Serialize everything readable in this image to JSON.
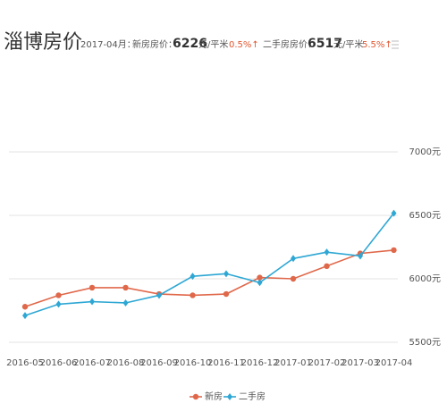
{
  "header": {
    "title": "淄博房价",
    "month": "2017-04月：",
    "new_label": "新房房价：",
    "new_price": "6226",
    "new_unit": "元/平米",
    "new_change": "0.5%↑",
    "second_label": "二手房房价：",
    "second_price": "6517",
    "second_unit": "元/平米",
    "second_change": "5.5%↑"
  },
  "chart_data": {
    "type": "line",
    "categories": [
      "2016-05",
      "2016-06",
      "2016-07",
      "2016-08",
      "2016-09",
      "2016-10",
      "2016-11",
      "2016-12",
      "2017-01",
      "2017-02",
      "2017-03",
      "2017-04"
    ],
    "series": [
      {
        "name": "新房",
        "color": "#e0684a",
        "values": [
          5780,
          5870,
          5930,
          5930,
          5880,
          5870,
          5880,
          6010,
          6000,
          6100,
          6200,
          6226
        ]
      },
      {
        "name": "二手房",
        "color": "#2ea7d4",
        "values": [
          5710,
          5800,
          5820,
          5810,
          5870,
          6020,
          6040,
          5970,
          6160,
          6210,
          6180,
          6517
        ]
      }
    ],
    "ylim": [
      5500,
      7000
    ],
    "yticks": [
      {
        "value": 5500,
        "label": "5500元"
      },
      {
        "value": 6000,
        "label": "6000元"
      },
      {
        "value": 6500,
        "label": "6500元"
      },
      {
        "value": 7000,
        "label": "7000元"
      }
    ],
    "grid": true,
    "legend": "bottom"
  }
}
